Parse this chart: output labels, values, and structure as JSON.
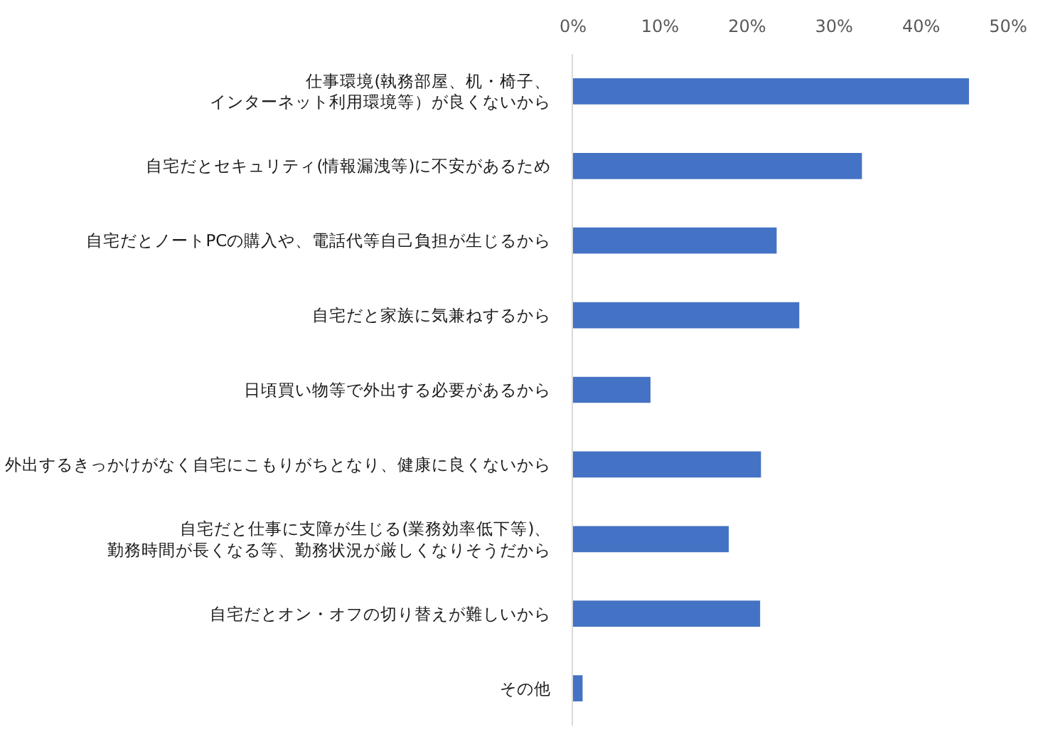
{
  "chart_data": {
    "type": "bar",
    "orientation": "horizontal",
    "categories": [
      "仕事環境(執務部屋、机・椅子、インターネット利用環境等）が良くないから",
      "自宅だとセキュリティ(情報漏洩等)に不安があるため",
      "自宅だとノートPCの購入や、電話代等自己負担が生じるから",
      "自宅だと家族に気兼ねするから",
      "日頃買い物等で外出する必要があるから",
      "外出するきっかけがなく自宅にこもりがちとなり、健康に良くないから",
      "自宅だと仕事に支障が生じる(業務効率低下等)、勤務時間が長くなる等、勤務状況が厳しくなりそうだから",
      "自宅だとオン・オフの切り替えが難しいから",
      "その他"
    ],
    "values": [
      45.5,
      33.2,
      23.4,
      26.0,
      8.9,
      21.6,
      17.9,
      21.5,
      1.1
    ],
    "color": "#4472c4",
    "xlim": [
      0,
      50
    ],
    "xticks": [
      {
        "value": 0,
        "label": "0%"
      },
      {
        "value": 10,
        "label": "10%"
      },
      {
        "value": 20,
        "label": "20%"
      },
      {
        "value": 30,
        "label": "30%"
      },
      {
        "value": 40,
        "label": "40%"
      },
      {
        "value": 50,
        "label": "50%"
      }
    ]
  }
}
